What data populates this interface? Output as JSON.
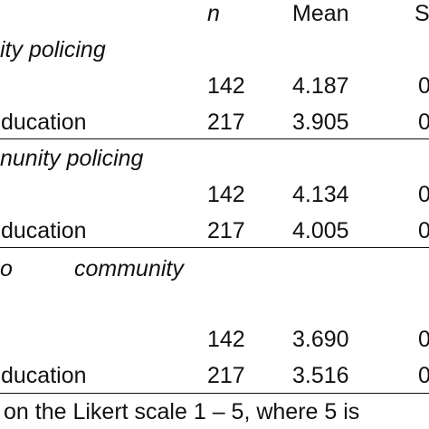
{
  "table": {
    "header": {
      "n": "n",
      "mean": "Mean",
      "sd_partial": "S"
    },
    "sections": [
      {
        "title": "ity policing",
        "rows": [
          {
            "label": "",
            "n": "142",
            "mean": "4.187",
            "sd_partial": "0"
          },
          {
            "label": "ducation",
            "n": "217",
            "mean": "3.905",
            "sd_partial": "0"
          }
        ]
      },
      {
        "title": "nunity policing",
        "rows": [
          {
            "label": "",
            "n": "142",
            "mean": "4.134",
            "sd_partial": "0"
          },
          {
            "label": "ducation",
            "n": "217",
            "mean": "4.005",
            "sd_partial": "0"
          }
        ]
      },
      {
        "title_part1": "o",
        "title_part2": "community",
        "rows": [
          {
            "label": "",
            "n": "142",
            "mean": "3.690",
            "sd_partial": "0"
          },
          {
            "label": "ducation",
            "n": "217",
            "mean": "3.516",
            "sd_partial": "0"
          }
        ]
      }
    ],
    "footnote": "on the Likert scale 1 – 5, where 5 is"
  }
}
